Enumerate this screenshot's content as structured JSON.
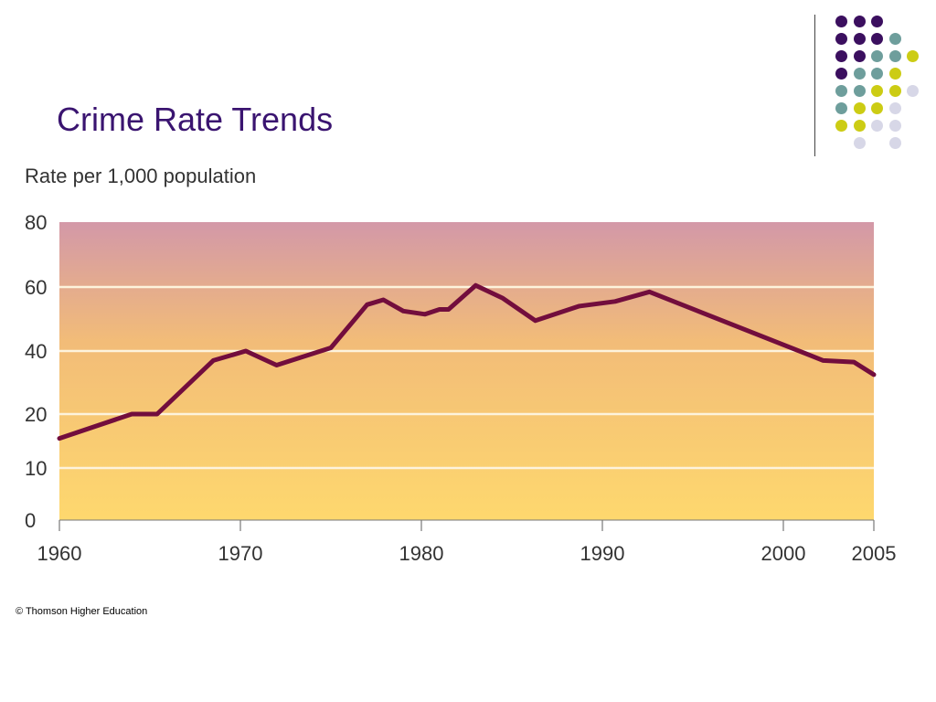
{
  "slide": {
    "title": "Crime Rate Trends",
    "copyright": "© Thomson Higher Education"
  },
  "colors": {
    "title": "#3a1470",
    "line": "#720d3d",
    "bg_top": "#d398a8",
    "bg_mid": "#f2bc78",
    "bg_bottom": "#fed86e",
    "grid": "#fdf3dc",
    "dot_purple": "#3b0f5f",
    "dot_teal": "#6e9e9c",
    "dot_yellow": "#cccc14",
    "dot_lavender": "#d7d7e7"
  },
  "decor_dots": [
    [
      "purple",
      "purple",
      "purple",
      ""
    ],
    [
      "purple",
      "purple",
      "purple",
      "teal"
    ],
    [
      "purple",
      "purple",
      "teal",
      "teal",
      "yellow"
    ],
    [
      "purple",
      "teal",
      "teal",
      "yellow"
    ],
    [
      "teal",
      "teal",
      "yellow",
      "yellow",
      "lavender"
    ],
    [
      "teal",
      "yellow",
      "yellow",
      "lavender"
    ],
    [
      "yellow",
      "yellow",
      "lavender",
      "lavender"
    ],
    [
      "",
      "lavender",
      "",
      "lavender"
    ]
  ],
  "chart_data": {
    "type": "line",
    "title": "Crime Rate Trends",
    "ylabel": "Rate per 1,000 population",
    "xlabel": "",
    "xlim": [
      1960,
      2005
    ],
    "ylim": [
      0,
      80
    ],
    "x_ticks": [
      1960,
      1970,
      1980,
      1990,
      2000,
      2005
    ],
    "y_ticks": [
      0,
      10,
      20,
      40,
      60,
      80
    ],
    "grid": true,
    "series": [
      {
        "x": [
          1960,
          1964,
          1965.4,
          1968.5,
          1970.3,
          1972,
          1975,
          1977,
          1977.9,
          1979,
          1980.2,
          1981,
          1981.5,
          1983,
          1984.5,
          1986.3,
          1988.7,
          1990.7,
          1992.6,
          2002.2,
          2003.9,
          2005
        ],
        "y": [
          15.5,
          20,
          20,
          37,
          40,
          35.5,
          41,
          54.5,
          56,
          52.5,
          51.5,
          53,
          53,
          60.5,
          56.5,
          49.5,
          54,
          55.5,
          58.5,
          37,
          36.5,
          32.5
        ]
      }
    ]
  }
}
